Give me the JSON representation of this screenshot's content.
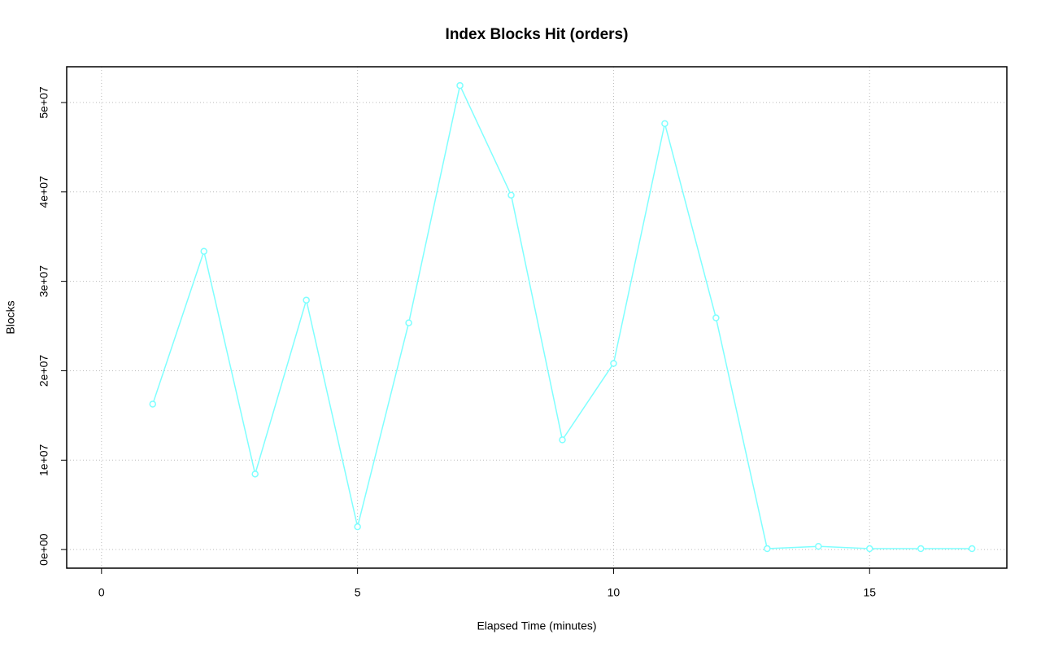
{
  "chart_data": {
    "type": "line",
    "title": "Index Blocks Hit (orders)",
    "x_label": "Elapsed Time (minutes)",
    "y_label": "Blocks",
    "x": [
      1,
      2,
      3,
      4,
      5,
      6,
      7,
      8,
      9,
      10,
      11,
      12,
      13,
      14,
      15,
      16,
      17
    ],
    "values": [
      16270000,
      33360000,
      8450000,
      27900000,
      2550000,
      25360000,
      51900000,
      39640000,
      12270000,
      20820000,
      47640000,
      25910000,
      100000,
      360000,
      100000,
      100000,
      100000
    ],
    "color": "#7fffff",
    "xlim": [
      -0.68,
      17.68
    ],
    "xticks": [
      0,
      5,
      10,
      15
    ],
    "ylim": [
      -2080000,
      54000000
    ],
    "yticks": [
      {
        "value": 0,
        "label": "0e+00"
      },
      {
        "value": 10000000,
        "label": "1e+07"
      },
      {
        "value": 20000000,
        "label": "2e+07"
      },
      {
        "value": 30000000,
        "label": "3e+07"
      },
      {
        "value": 40000000,
        "label": "4e+07"
      },
      {
        "value": 50000000,
        "label": "5e+07"
      }
    ],
    "grid": true
  }
}
